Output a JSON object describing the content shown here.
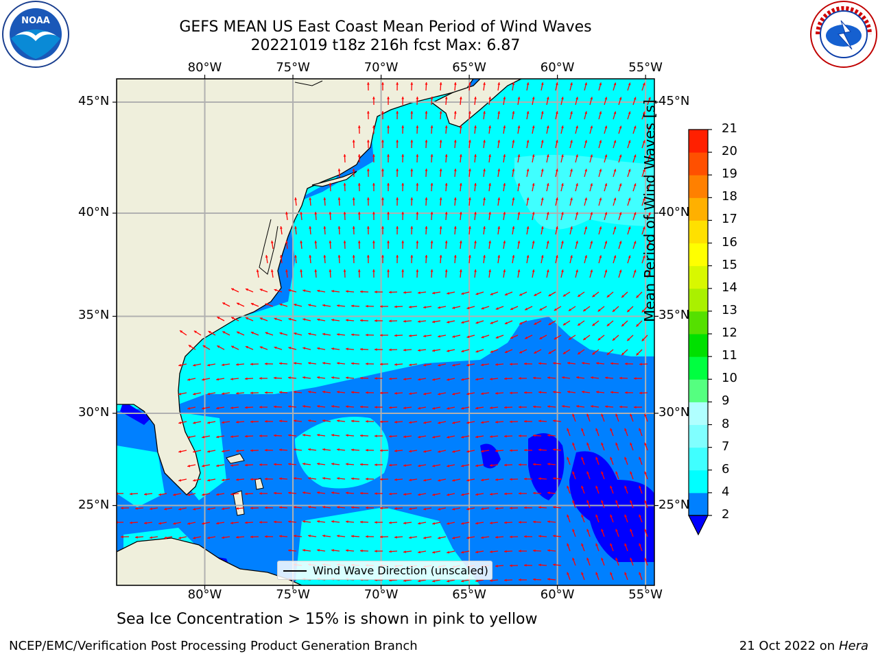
{
  "header": {
    "title_line1": "GEFS MEAN US East Coast Mean Period of Wind Waves",
    "title_line2": "20221019 t18z 216h fcst   Max: 6.87"
  },
  "logos": {
    "left": "noaa-logo",
    "right": "nws-logo"
  },
  "map": {
    "lon_ticks": [
      "80°W",
      "75°W",
      "70°W",
      "65°W",
      "60°W",
      "55°W"
    ],
    "lon_values": [
      -80,
      -75,
      -70,
      -65,
      -60,
      -55
    ],
    "lat_ticks": [
      "45°N",
      "40°N",
      "35°N",
      "30°N",
      "25°N"
    ],
    "lat_values": [
      45,
      40,
      35,
      30,
      25
    ],
    "lon_range": [
      -85,
      -54.5
    ],
    "lat_range": [
      20.5,
      46
    ],
    "land_color": "#efefdc",
    "grid": true
  },
  "colorbar": {
    "label": "Mean Period of Wind Waves [s]",
    "ticks": [
      "2",
      "4",
      "6",
      "7",
      "8",
      "9",
      "10",
      "11",
      "12",
      "13",
      "14",
      "15",
      "16",
      "17",
      "18",
      "19",
      "20",
      "21"
    ],
    "levels": [
      2,
      4,
      6,
      7,
      8,
      9,
      10,
      11,
      12,
      13,
      14,
      15,
      16,
      17,
      18,
      19,
      20,
      21
    ],
    "colors": [
      "#0080ff",
      "#00ffff",
      "#40ffff",
      "#80ffff",
      "#b0ffff",
      "#55ff80",
      "#00ff40",
      "#00e000",
      "#55e000",
      "#aaf000",
      "#d8f800",
      "#ffff00",
      "#ffe000",
      "#ffb000",
      "#ff8000",
      "#ff5000",
      "#ff2000",
      "#ff0000"
    ],
    "under_color": "#0000ff"
  },
  "legend": {
    "label": "Wind Wave Direction (unscaled)"
  },
  "note": "Sea Ice Concentration > 15% is shown in pink to yellow",
  "footer": {
    "left": "NCEP/EMC/Verification Post Processing Product Generation Branch",
    "date": "21 Oct 2022 on",
    "host": "Hera"
  }
}
